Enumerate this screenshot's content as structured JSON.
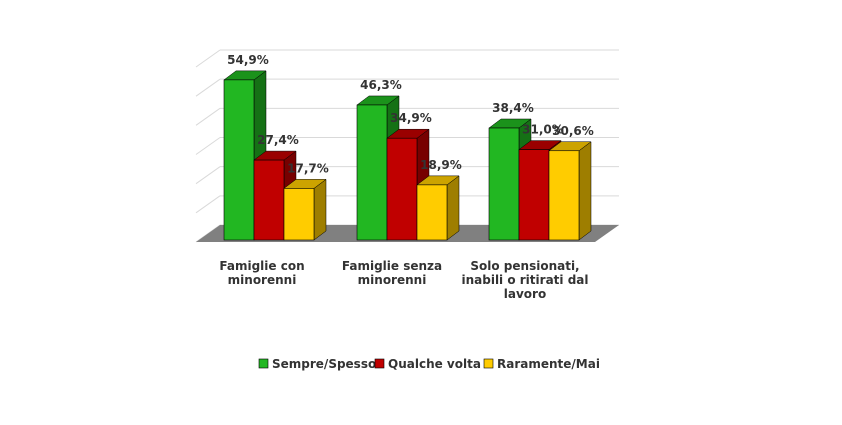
{
  "chart_data": {
    "type": "bar",
    "categories": [
      [
        "Famiglie con",
        "minorenni"
      ],
      [
        "Famiglie senza",
        "minorenni"
      ],
      [
        "Solo pensionati,",
        "inabili o ritirati dal",
        "lavoro"
      ]
    ],
    "series": [
      {
        "name": "Sempre/Spesso",
        "values": [
          54.9,
          46.3,
          38.4
        ],
        "labels": [
          "54,9%",
          "46,3%",
          "38,4%"
        ],
        "color": "#22b722"
      },
      {
        "name": "Qualche volta",
        "values": [
          27.4,
          34.9,
          31.0
        ],
        "labels": [
          "27,4%",
          "34,9%",
          "31,0%"
        ],
        "color": "#c00000"
      },
      {
        "name": "Raramente/Mai",
        "values": [
          17.7,
          18.9,
          30.6
        ],
        "labels": [
          "17,7%",
          "18,9%",
          "30,6%"
        ],
        "color": "#ffcc00"
      }
    ],
    "ylim": [
      0,
      60
    ],
    "grid": true,
    "three_d": true,
    "legend_position": "bottom",
    "floor_color": "#808080"
  }
}
